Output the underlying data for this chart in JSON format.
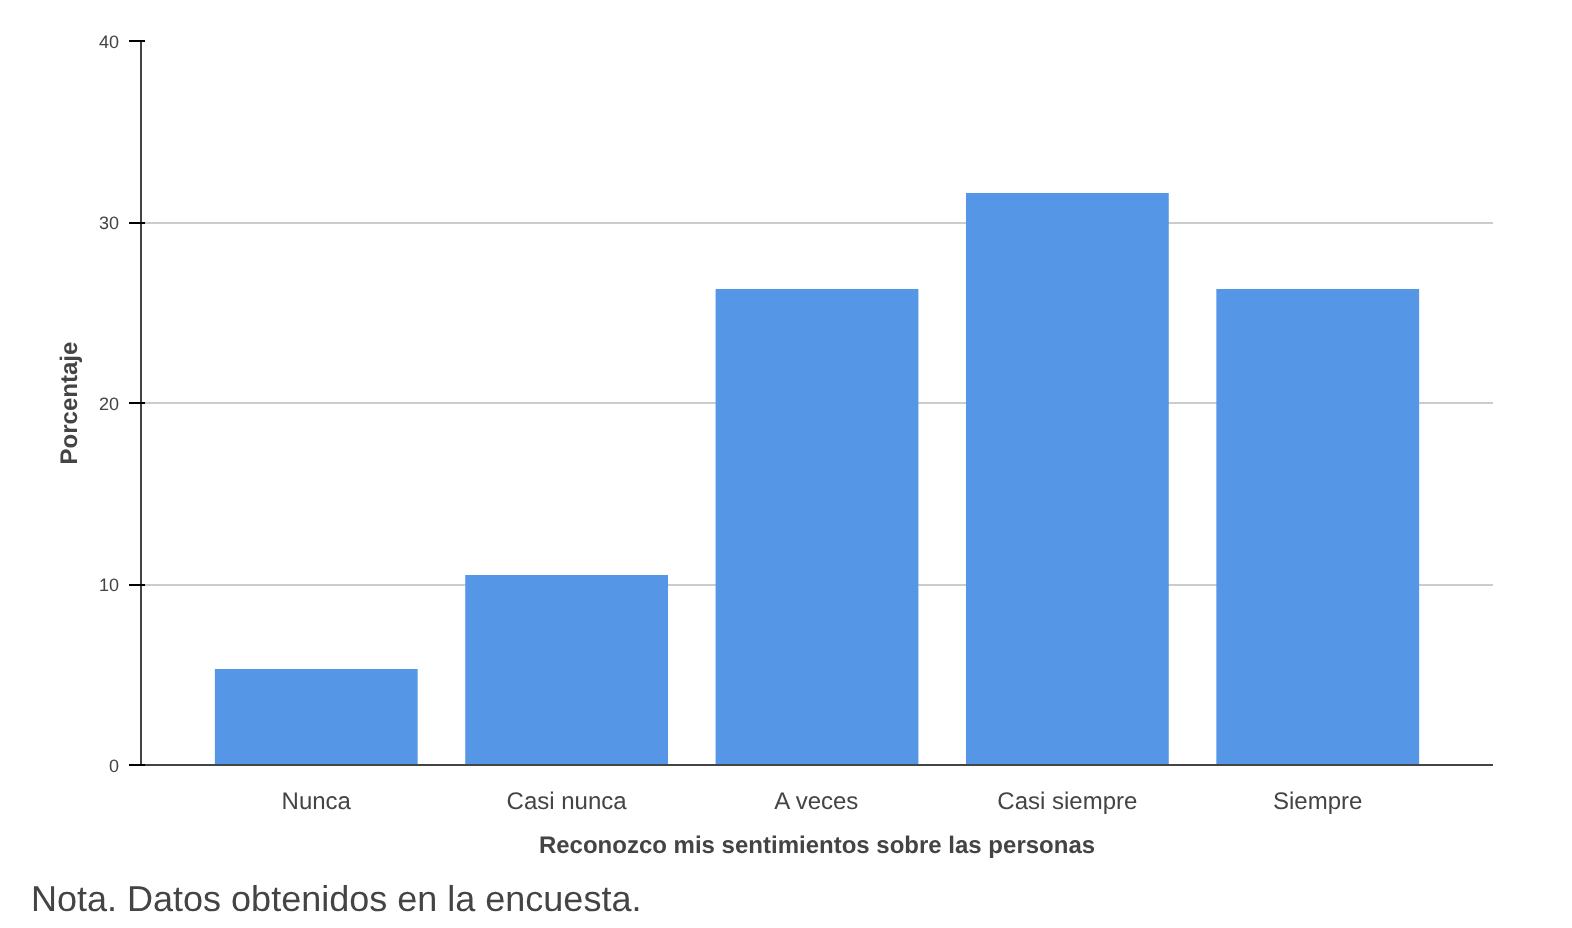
{
  "chart_data": {
    "type": "bar",
    "xlabel": "Reconozco mis sentimientos sobre las personas",
    "ylabel": "Porcentaje",
    "categories": [
      "Nunca",
      "Casi nunca",
      "A veces",
      "Casi siempre",
      "Siempre"
    ],
    "values": [
      5.3,
      10.5,
      26.3,
      31.6,
      26.3
    ],
    "color": "#5596e6",
    "ylim": [
      0,
      40
    ],
    "yticks": [
      0,
      10,
      20,
      30,
      40
    ],
    "grid": "y",
    "annotations": [
      "Nota. Datos obtenidos en la encuesta."
    ]
  }
}
